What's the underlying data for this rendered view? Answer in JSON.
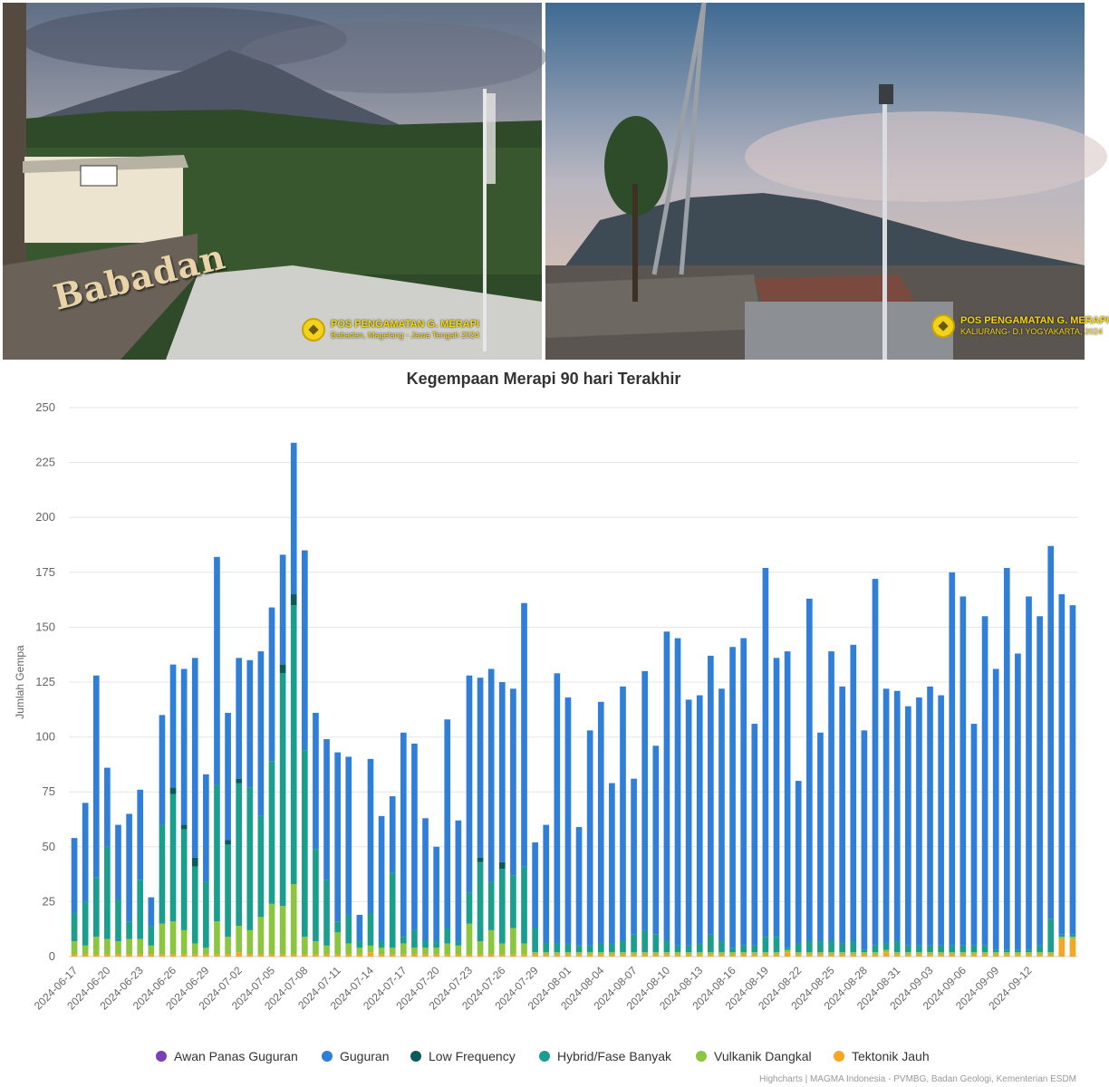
{
  "photos": [
    {
      "badge_title": "POS PENGAMATAN G. MERAPI",
      "badge_location": "Babadan, Magelang - Jawa Tengah 2024",
      "sign_text": "Babadan"
    },
    {
      "badge_title": "POS PENGAMATAN G. MERAPI",
      "badge_location": "KALIURANG- D.I YOGYAKARTA, 2024"
    }
  ],
  "colors": {
    "awan_panas_guguran": "#7b3fb5",
    "guguran": "#2f7ed8",
    "low_frequency": "#0a5c5a",
    "hybrid": "#1a9e8e",
    "vulkanik_dangkal": "#8cc63f",
    "tektonik_jauh": "#f7a623"
  },
  "chart_data": {
    "type": "bar",
    "stacked": true,
    "title": "Kegempaan Merapi 90 hari Terakhir",
    "xlabel": "",
    "ylabel": "Jumlah Gempa",
    "ylim": [
      0,
      250
    ],
    "yticks": [
      0,
      25,
      50,
      75,
      100,
      125,
      150,
      175,
      200,
      225,
      250
    ],
    "grid": true,
    "legend_position": "bottom",
    "start_date": "2024-06-17",
    "xtick_labels": [
      "2024-06-17",
      "2024-06-20",
      "2024-06-23",
      "2024-06-26",
      "2024-06-29",
      "2024-07-02",
      "2024-07-05",
      "2024-07-08",
      "2024-07-11",
      "2024-07-14",
      "2024-07-17",
      "2024-07-20",
      "2024-07-23",
      "2024-07-26",
      "2024-07-29",
      "2024-08-01",
      "2024-08-04",
      "2024-08-07",
      "2024-08-10",
      "2024-08-13",
      "2024-08-16",
      "2024-08-19",
      "2024-08-22",
      "2024-08-25",
      "2024-08-28",
      "2024-08-31",
      "2024-09-03",
      "2024-09-06",
      "2024-09-09",
      "2024-09-12"
    ],
    "series": [
      {
        "name": "Tektonik Jauh",
        "color_key": "tektonik_jauh",
        "values": [
          1,
          1,
          1,
          1,
          1,
          1,
          1,
          1,
          1,
          1,
          1,
          1,
          1,
          1,
          1,
          2,
          1,
          1,
          1,
          1,
          1,
          1,
          1,
          1,
          1,
          1,
          1,
          2,
          1,
          1,
          1,
          1,
          1,
          1,
          1,
          1,
          1,
          1,
          1,
          1,
          1,
          1,
          1,
          1,
          1,
          1,
          1,
          1,
          1,
          1,
          1,
          1,
          1,
          1,
          1,
          1,
          1,
          1,
          1,
          1,
          1,
          1,
          1,
          1,
          1,
          2,
          1,
          1,
          1,
          1,
          1,
          1,
          1,
          1,
          2,
          1,
          1,
          1,
          1,
          1,
          1,
          1,
          1,
          1,
          1,
          1,
          1,
          1,
          1,
          1,
          8,
          8
        ]
      },
      {
        "name": "Vulkanik Dangkal",
        "color_key": "vulkanik_dangkal",
        "values": [
          6,
          4,
          8,
          7,
          6,
          7,
          7,
          4,
          14,
          15,
          11,
          5,
          3,
          15,
          8,
          12,
          11,
          17,
          23,
          22,
          32,
          8,
          6,
          4,
          10,
          5,
          3,
          3,
          3,
          3,
          5,
          3,
          3,
          3,
          5,
          4,
          14,
          6,
          11,
          5,
          12,
          5,
          1,
          1,
          1,
          1,
          1,
          1,
          1,
          1,
          1,
          1,
          1,
          1,
          1,
          1,
          1,
          1,
          1,
          1,
          1,
          1,
          1,
          1,
          1,
          1,
          1,
          1,
          1,
          1,
          1,
          1,
          1,
          1,
          1,
          1,
          1,
          1,
          1,
          1,
          1,
          1,
          1,
          1,
          1,
          1,
          1,
          1,
          1,
          1,
          1,
          1
        ]
      },
      {
        "name": "Hybrid/Fase Banyak",
        "color_key": "hybrid",
        "values": [
          13,
          20,
          27,
          42,
          19,
          8,
          27,
          9,
          45,
          58,
          46,
          35,
          30,
          62,
          42,
          65,
          65,
          46,
          65,
          106,
          127,
          85,
          42,
          30,
          5,
          13,
          3,
          15,
          3,
          34,
          3,
          8,
          3,
          3,
          7,
          2,
          14,
          36,
          22,
          34,
          24,
          35,
          11,
          4,
          4,
          4,
          3,
          3,
          4,
          4,
          5,
          8,
          10,
          8,
          5,
          3,
          3,
          4,
          8,
          5,
          2,
          3,
          3,
          7,
          7,
          1,
          4,
          5,
          5,
          5,
          4,
          5,
          1,
          3,
          3,
          5,
          3,
          3,
          3,
          3,
          3,
          3,
          3,
          3,
          1,
          1,
          1,
          1,
          3,
          15,
          1,
          1
        ]
      },
      {
        "name": "Low Frequency",
        "color_key": "low_frequency",
        "values": [
          0,
          0,
          0,
          0,
          0,
          0,
          0,
          0,
          0,
          3,
          2,
          4,
          0,
          0,
          2,
          2,
          0,
          0,
          0,
          4,
          5,
          0,
          0,
          0,
          0,
          0,
          0,
          0,
          0,
          0,
          0,
          0,
          0,
          0,
          0,
          0,
          0,
          2,
          0,
          3,
          0,
          0,
          0,
          0,
          0,
          0,
          0,
          0,
          0,
          0,
          0,
          0,
          0,
          0,
          0,
          0,
          0,
          0,
          0,
          0,
          0,
          0,
          0,
          0,
          0,
          0,
          0,
          0,
          0,
          0,
          0,
          0,
          0,
          0,
          0,
          0,
          0,
          0,
          0,
          0,
          0,
          0,
          0,
          0,
          0,
          0,
          0,
          0,
          0,
          0,
          0,
          0
        ]
      },
      {
        "name": "Guguran",
        "color_key": "guguran",
        "values": [
          34,
          45,
          92,
          36,
          34,
          49,
          41,
          13,
          50,
          56,
          71,
          91,
          49,
          104,
          58,
          55,
          58,
          75,
          70,
          50,
          69,
          91,
          62,
          64,
          77,
          72,
          12,
          70,
          57,
          35,
          93,
          85,
          56,
          43,
          95,
          55,
          99,
          82,
          97,
          82,
          85,
          120,
          39,
          54,
          123,
          112,
          54,
          98,
          110,
          73,
          116,
          71,
          118,
          86,
          141,
          140,
          112,
          113,
          127,
          115,
          137,
          140,
          101,
          168,
          127,
          135,
          74,
          156,
          95,
          132,
          117,
          135,
          100,
          167,
          116,
          114,
          109,
          113,
          118,
          114,
          170,
          159,
          101,
          150,
          128,
          174,
          135,
          161,
          150,
          170,
          155,
          150
        ]
      },
      {
        "name": "Awan Panas Guguran",
        "color_key": "awan_panas_guguran",
        "values": [
          0,
          0,
          0,
          0,
          0,
          0,
          0,
          0,
          0,
          0,
          0,
          0,
          0,
          0,
          0,
          0,
          0,
          0,
          0,
          0,
          0,
          0,
          0,
          0,
          0,
          0,
          0,
          0,
          0,
          0,
          0,
          0,
          0,
          0,
          0,
          0,
          0,
          0,
          0,
          0,
          0,
          0,
          0,
          0,
          0,
          0,
          0,
          0,
          0,
          0,
          0,
          0,
          0,
          0,
          0,
          0,
          0,
          0,
          0,
          0,
          0,
          0,
          0,
          0,
          0,
          0,
          0,
          0,
          0,
          0,
          0,
          0,
          0,
          0,
          0,
          0,
          0,
          0,
          0,
          0,
          0,
          0,
          0,
          0,
          0,
          0,
          0,
          0,
          0,
          0,
          0,
          0
        ]
      }
    ]
  },
  "credits": "Highcharts | MAGMA Indonesia - PVMBG, Badan Geologi, Kementerian ESDM"
}
